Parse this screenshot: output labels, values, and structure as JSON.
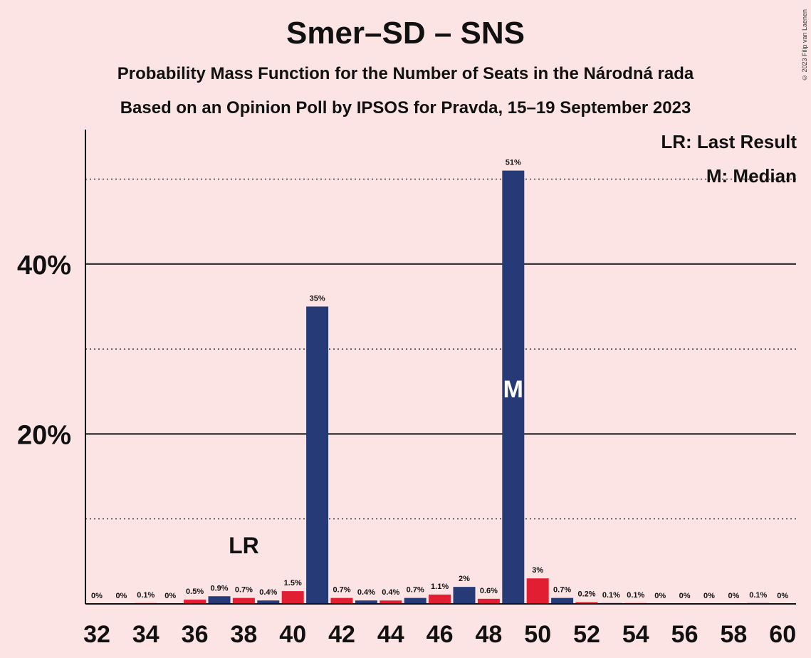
{
  "title": "Smer–SD – SNS",
  "subtitle1": "Probability Mass Function for the Number of Seats in the Národná rada",
  "subtitle2": "Based on an Opinion Poll by IPSOS for Pravda, 15–19 September 2023",
  "copyright": "© 2023 Filip van Laenen",
  "legend": {
    "last_result": "LR: Last Result",
    "median": "M: Median"
  },
  "colors": {
    "background": "#fde4e4",
    "bar_blue": "#253a77",
    "bar_red": "#e21e33"
  },
  "chart_data": {
    "type": "bar",
    "title": "Smer–SD – SNS",
    "xlabel": "",
    "ylabel": "",
    "ylim": [
      0,
      56
    ],
    "y_ticks_solid": [
      20,
      40
    ],
    "y_ticks_dotted": [
      10,
      30,
      50
    ],
    "y_tick_labels": [
      "20%",
      "40%"
    ],
    "x_tick_labels": [
      "32",
      "34",
      "36",
      "38",
      "40",
      "42",
      "44",
      "46",
      "48",
      "50",
      "52",
      "54",
      "56",
      "58",
      "60"
    ],
    "x": [
      32,
      33,
      34,
      35,
      36,
      37,
      38,
      39,
      40,
      41,
      42,
      43,
      44,
      45,
      46,
      47,
      48,
      49,
      50,
      51,
      52,
      53,
      54,
      55,
      56,
      57,
      58,
      59,
      60
    ],
    "values": [
      0,
      0,
      0.1,
      0,
      0.5,
      0.9,
      0.7,
      0.4,
      1.5,
      35,
      0.7,
      0.4,
      0.4,
      0.7,
      1.1,
      2,
      0.6,
      51,
      3,
      0.7,
      0.2,
      0.1,
      0.1,
      0,
      0,
      0,
      0,
      0.1,
      0
    ],
    "labels": [
      "0%",
      "0%",
      "0.1%",
      "0%",
      "0.5%",
      "0.9%",
      "0.7%",
      "0.4%",
      "1.5%",
      "35%",
      "0.7%",
      "0.4%",
      "0.4%",
      "0.7%",
      "1.1%",
      "2%",
      "0.6%",
      "51%",
      "3%",
      "0.7%",
      "0.2%",
      "0.1%",
      "0.1%",
      "0%",
      "0%",
      "0%",
      "0%",
      "0.1%",
      "0%"
    ],
    "bar_colors": [
      "red",
      "blue",
      "red",
      "blue",
      "red",
      "blue",
      "red",
      "blue",
      "red",
      "blue",
      "red",
      "blue",
      "red",
      "blue",
      "red",
      "blue",
      "red",
      "blue",
      "red",
      "blue",
      "red",
      "blue",
      "red",
      "blue",
      "red",
      "blue",
      "red",
      "blue",
      "red"
    ],
    "last_result_seat": 38,
    "last_result_marker": "LR",
    "median_seat": 49,
    "median_marker": "M",
    "grid": true,
    "legend_position": "top-right"
  }
}
